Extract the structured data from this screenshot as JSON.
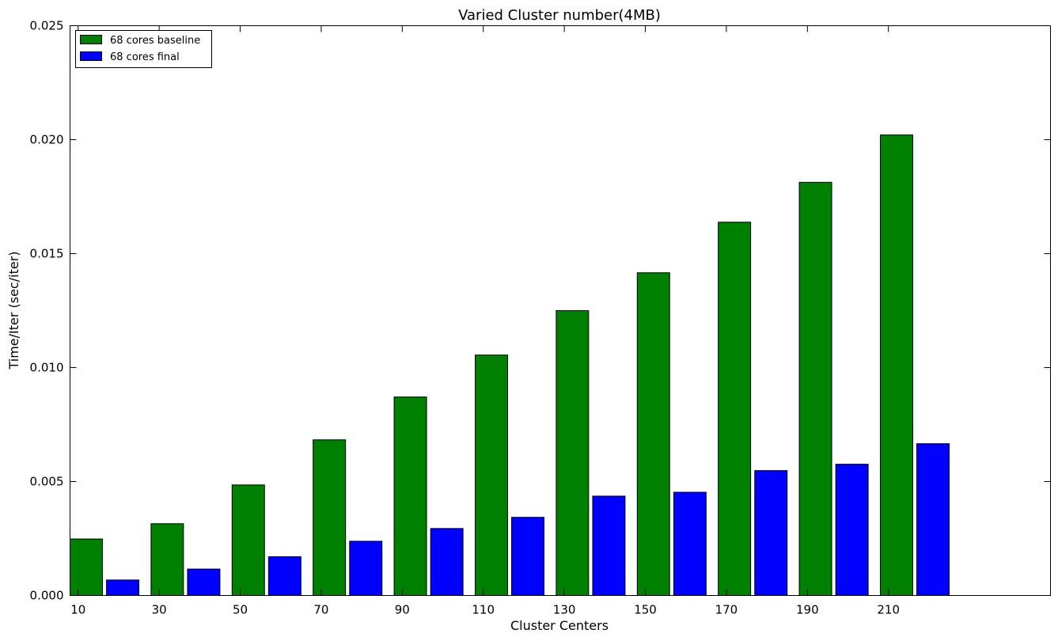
{
  "chart_data": {
    "type": "bar",
    "title": "Varied Cluster number(4MB)",
    "xlabel": "Cluster Centers",
    "ylabel": "Time/Iter (sec/iter)",
    "categories": [
      "10",
      "30",
      "50",
      "70",
      "90",
      "110",
      "130",
      "150",
      "170",
      "190",
      "210"
    ],
    "x": [
      10,
      30,
      50,
      70,
      90,
      110,
      130,
      150,
      170,
      190,
      210
    ],
    "xlim": [
      8,
      250
    ],
    "ylim": [
      0,
      0.025
    ],
    "yticks": [
      0.0,
      0.005,
      0.01,
      0.015,
      0.02,
      0.025
    ],
    "ytick_labels": [
      "0.000",
      "0.005",
      "0.010",
      "0.015",
      "0.020",
      "0.025"
    ],
    "legend_position": "upper-left",
    "grid": false,
    "series": [
      {
        "name": "68 cores baseline",
        "color": "#008000",
        "values": [
          0.00248,
          0.00315,
          0.00485,
          0.00683,
          0.00871,
          0.01055,
          0.0125,
          0.01416,
          0.01638,
          0.01813,
          0.02021
        ]
      },
      {
        "name": "68 cores final",
        "color": "#0000ff",
        "values": [
          0.00068,
          0.00116,
          0.0017,
          0.00238,
          0.00294,
          0.00343,
          0.00436,
          0.00453,
          0.00548,
          0.00576,
          0.00666
        ]
      }
    ]
  }
}
